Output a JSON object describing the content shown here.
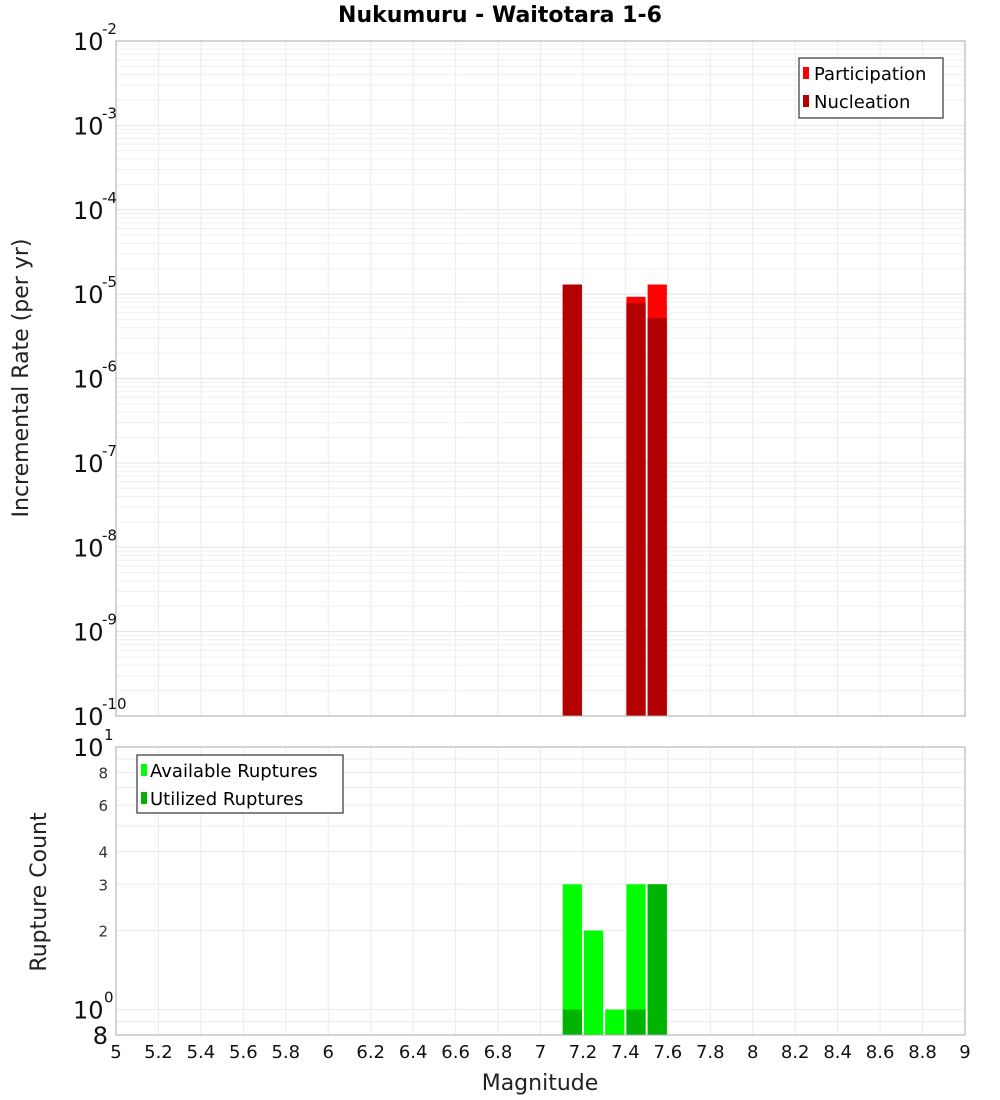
{
  "chart_data": [
    {
      "type": "bar",
      "title": "Nukumuru - Waitotara 1-6",
      "xlabel": "Magnitude",
      "ylabel": "Incremental Rate (per yr)",
      "yscale": "log",
      "xlim": [
        5,
        9
      ],
      "ylim": [
        1e-10,
        0.01
      ],
      "grid": true,
      "legend_position": "top-right",
      "bin_width": 0.1,
      "x": [
        7.15,
        7.45,
        7.55
      ],
      "series": [
        {
          "name": "Participation",
          "color": "#ff0000",
          "values": [
            1.3e-05,
            9.3e-06,
            1.3e-05
          ]
        },
        {
          "name": "Nucleation",
          "color": "#b30000",
          "values": [
            1.3e-05,
            7.8e-06,
            5.2e-06
          ]
        }
      ],
      "y_tick_exponents": [
        -2,
        -3,
        -4,
        -5,
        -6,
        -7,
        -8,
        -9,
        -10
      ]
    },
    {
      "type": "bar",
      "title": "",
      "xlabel": "Magnitude",
      "ylabel": "Rupture Count",
      "yscale": "log",
      "xlim": [
        5,
        9
      ],
      "ylim": [
        0.8,
        10
      ],
      "grid": true,
      "legend_position": "top-left",
      "bin_width": 0.1,
      "x": [
        7.15,
        7.25,
        7.35,
        7.45,
        7.55
      ],
      "series": [
        {
          "name": "Available Ruptures",
          "color": "#00ff00",
          "values": [
            3,
            2,
            1,
            3,
            3
          ]
        },
        {
          "name": "Utilized Ruptures",
          "color": "#00b300",
          "values": [
            1,
            0,
            0,
            1,
            3
          ]
        }
      ],
      "y_tick_labels": [
        "10^1",
        "8",
        "6",
        "4",
        "3",
        "2",
        "10^0",
        "8"
      ]
    }
  ],
  "labels": {
    "title": "Nukumuru - Waitotara 1-6",
    "top_ylabel": "Incremental Rate (per yr)",
    "bottom_ylabel": "Rupture Count",
    "xlabel": "Magnitude",
    "legend_top": [
      "Participation",
      "Nucleation"
    ],
    "legend_bottom": [
      "Available Ruptures",
      "Utilized Ruptures"
    ],
    "x_ticks": [
      "5",
      "5.2",
      "5.4",
      "5.6",
      "5.8",
      "6",
      "6.2",
      "6.4",
      "6.6",
      "6.8",
      "7",
      "7.2",
      "7.4",
      "7.6",
      "7.8",
      "8",
      "8.2",
      "8.4",
      "8.6",
      "8.8",
      "9"
    ]
  }
}
